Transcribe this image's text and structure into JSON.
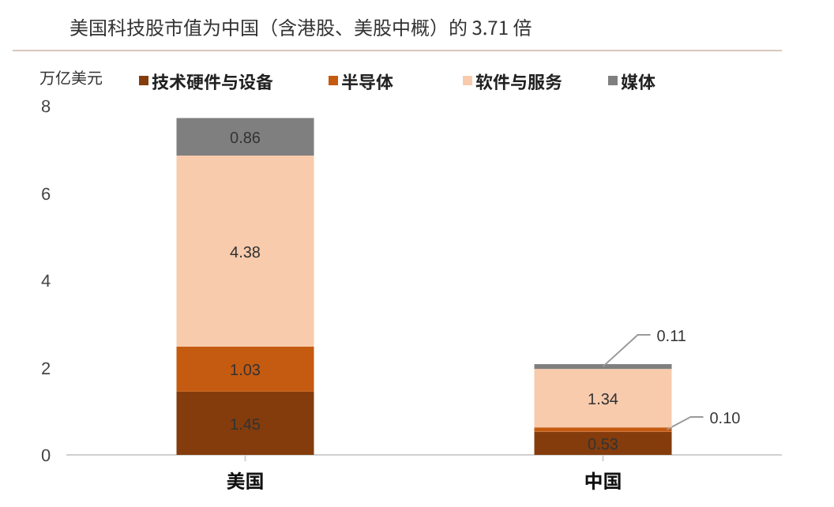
{
  "chart_data": {
    "type": "bar",
    "stacked": true,
    "title": "美国科技股市值为中国（含港股、美股中概）的 3.71 倍",
    "ylabel": "万亿美元",
    "categories": [
      "美国",
      "中国"
    ],
    "ylim": [
      0,
      8
    ],
    "yticks": [
      0,
      2,
      4,
      6,
      8
    ],
    "grid": false,
    "legend": "top",
    "series": [
      {
        "name": "技术硬件与设备",
        "color": "#843c0c",
        "values": [
          1.45,
          0.53
        ],
        "value_labels": [
          "1.45",
          "0.53"
        ]
      },
      {
        "name": "半导体",
        "color": "#c55a11",
        "values": [
          1.03,
          0.1
        ],
        "value_labels": [
          "1.03",
          "0.10"
        ]
      },
      {
        "name": "软件与服务",
        "color": "#f8cbad",
        "values": [
          4.38,
          1.34
        ],
        "value_labels": [
          "4.38",
          "1.34"
        ]
      },
      {
        "name": "媒体",
        "color": "#7f7f7f",
        "values": [
          0.86,
          0.11
        ],
        "value_labels": [
          "0.86",
          "0.11"
        ]
      }
    ]
  }
}
